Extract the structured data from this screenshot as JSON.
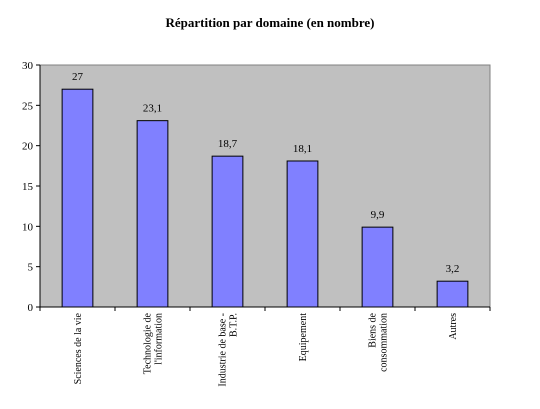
{
  "chart_data": {
    "type": "bar",
    "title": "Répartition par domaine (en nombre)",
    "xlabel": "",
    "ylabel": "",
    "ylim": [
      0,
      30
    ],
    "yticks": [
      0,
      5,
      10,
      15,
      20,
      25,
      30
    ],
    "grid": false,
    "legend": "none",
    "categories": [
      [
        "Sciences de la vie"
      ],
      [
        "Technologie de",
        "l'information"
      ],
      [
        "Industrie de base -",
        "B.T.P."
      ],
      [
        "Equipement"
      ],
      [
        "Biens de",
        "consommation"
      ],
      [
        "Autres"
      ]
    ],
    "values": [
      27,
      23.1,
      18.7,
      18.1,
      9.9,
      3.2
    ],
    "data_labels": [
      "27",
      "23,1",
      "18,7",
      "18,1",
      "9,9",
      "3,2"
    ],
    "colors": {
      "bar_fill": "#8080ff",
      "bar_stroke": "#000000",
      "plot_background": "#c0c0c0",
      "axis": "#000000"
    }
  }
}
